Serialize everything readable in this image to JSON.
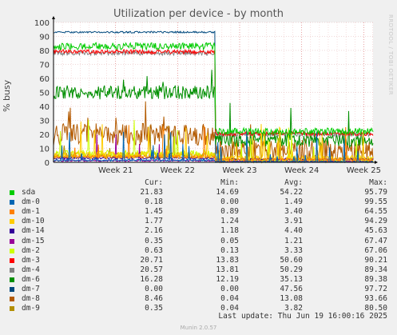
{
  "chart_data": {
    "type": "line",
    "title": "Utilization per device - by month",
    "ylabel": "% busy",
    "ylim": [
      0,
      100
    ],
    "yticks": [
      0,
      10,
      20,
      30,
      40,
      50,
      60,
      70,
      80,
      90,
      100
    ],
    "xrange_weeks": [
      20.0,
      25.15
    ],
    "xticks": [
      {
        "label": "Week 21",
        "pos": 21
      },
      {
        "label": "Week 22",
        "pos": 22
      },
      {
        "label": "Week 23",
        "pos": 23
      },
      {
        "label": "Week 24",
        "pos": 24
      },
      {
        "label": "Week 25",
        "pos": 25
      }
    ],
    "change_week": 22.6,
    "grid": true,
    "side_label": "RRDTOOL / TOBI OETIKER",
    "legend_headers": {
      "cur": "Cur:",
      "min": "Min:",
      "avg": "Avg:",
      "max": "Max:"
    },
    "series": [
      {
        "name": "sda",
        "color": "#00cc00",
        "cur": "21.83",
        "min": "14.69",
        "avg": "54.22",
        "max": "95.79",
        "before": 83,
        "after": 22,
        "noise": 2.5,
        "spikes": 0
      },
      {
        "name": "dm-0",
        "color": "#0066b3",
        "cur": "0.18",
        "min": "0.00",
        "avg": "1.49",
        "max": "99.55",
        "before": 1.5,
        "after": 0.3,
        "noise": 0.6,
        "spikes": 0.04
      },
      {
        "name": "dm-1",
        "color": "#ff8000",
        "cur": "1.45",
        "min": "0.89",
        "avg": "3.40",
        "max": "64.55",
        "before": 4,
        "after": 2,
        "noise": 1.0,
        "spikes": 0.03
      },
      {
        "name": "dm-10",
        "color": "#ffcc00",
        "cur": "1.77",
        "min": "1.24",
        "avg": "3.91",
        "max": "94.29",
        "before": 5,
        "after": 2.5,
        "noise": 2.5,
        "spikes": 0.05
      },
      {
        "name": "dm-14",
        "color": "#330099",
        "cur": "2.16",
        "min": "1.18",
        "avg": "4.40",
        "max": "45.63",
        "before": 3,
        "after": 2.2,
        "noise": 0.8,
        "spikes": 0
      },
      {
        "name": "dm-15",
        "color": "#990099",
        "cur": "0.35",
        "min": "0.05",
        "avg": "1.21",
        "max": "67.47",
        "before": 1.2,
        "after": 0.5,
        "noise": 0.6,
        "spikes": 0.01
      },
      {
        "name": "dm-2",
        "color": "#ccff00",
        "cur": "0.63",
        "min": "0.13",
        "avg": "3.33",
        "max": "67.06",
        "before": 6,
        "after": 1,
        "noise": 3,
        "spikes": 0.04
      },
      {
        "name": "dm-3",
        "color": "#ff0000",
        "cur": "20.71",
        "min": "13.83",
        "avg": "50.60",
        "max": "90.21",
        "before": 79,
        "after": 20.5,
        "noise": 1.5,
        "spikes": 0
      },
      {
        "name": "dm-4",
        "color": "#808080",
        "cur": "20.57",
        "min": "13.81",
        "avg": "50.29",
        "max": "89.34",
        "before": 78,
        "after": 20,
        "noise": 1.5,
        "spikes": 0
      },
      {
        "name": "dm-6",
        "color": "#008f00",
        "cur": "16.28",
        "min": "12.19",
        "avg": "35.13",
        "max": "89.38",
        "before": 50,
        "after": 16,
        "noise": 5,
        "spikes": 0.02
      },
      {
        "name": "dm-7",
        "color": "#00487d",
        "cur": "0.00",
        "min": "0.00",
        "avg": "47.56",
        "max": "97.72",
        "before": 93,
        "after": 0,
        "noise": 0.6,
        "spikes": 0
      },
      {
        "name": "dm-8",
        "color": "#b35a00",
        "cur": "8.46",
        "min": "0.04",
        "avg": "13.08",
        "max": "93.66",
        "before": 20,
        "after": 8,
        "noise": 8,
        "spikes": 0.03
      },
      {
        "name": "dm-9",
        "color": "#b38f00",
        "cur": "0.35",
        "min": "0.04",
        "avg": "3.82",
        "max": "80.50",
        "before": 5,
        "after": 1,
        "noise": 2,
        "spikes": 0.02
      }
    ],
    "last_update": "Last update: Thu Jun 19 16:00:16 2025",
    "version": "Munin 2.0.57"
  }
}
